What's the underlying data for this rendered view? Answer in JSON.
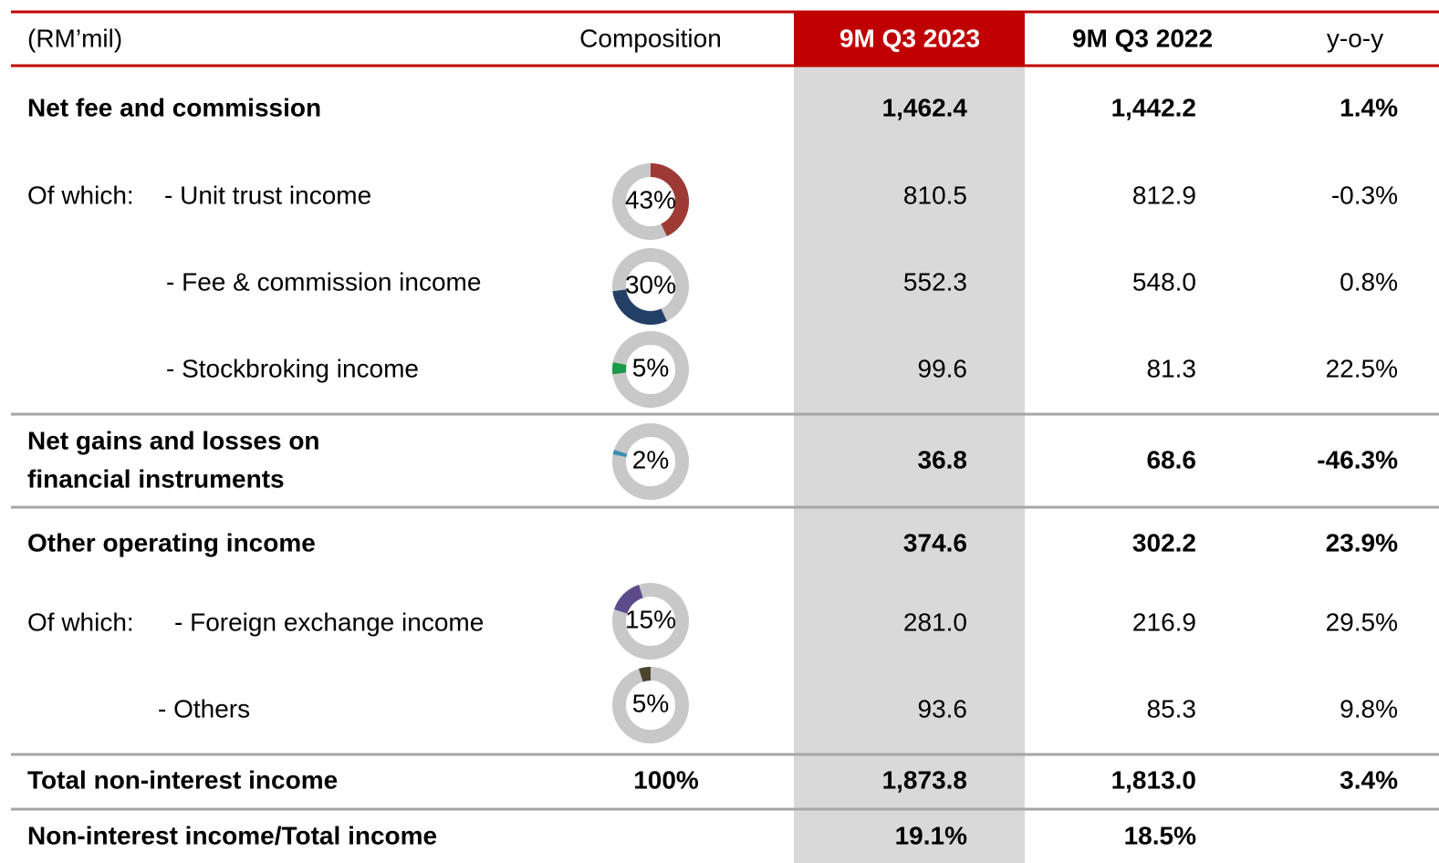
{
  "header": {
    "unit": "(RM’mil)",
    "composition": "Composition",
    "col1": "9M Q3 2023",
    "col2": "9M Q3 2022",
    "col3": "y-o-y"
  },
  "rows": [
    {
      "label": "Net fee and commission",
      "bold": true,
      "v2023": "1,462.4",
      "v2022": "1,442.2",
      "yoy": "1.4%"
    },
    {
      "prefix": "Of which:",
      "label": "- Unit trust income",
      "bold": false,
      "composition": {
        "value": 43,
        "label": "43%",
        "color": "#9e3a35"
      },
      "v2023": "810.5",
      "v2022": "812.9",
      "yoy": "-0.3%"
    },
    {
      "label": "- Fee & commission income",
      "bold": false,
      "composition": {
        "value": 30,
        "label": "30%",
        "color": "#243f66"
      },
      "v2023": "552.3",
      "v2022": "548.0",
      "yoy": "0.8%"
    },
    {
      "label": "- Stockbroking income",
      "bold": false,
      "composition": {
        "value": 5,
        "label": "5%",
        "color": "#1a9a4a"
      },
      "v2023": "99.6",
      "v2022": "81.3",
      "yoy": "22.5%"
    },
    {
      "label_lines": [
        "Net gains and losses on",
        "financial instruments"
      ],
      "bold": true,
      "composition": {
        "value": 2,
        "label": "2%",
        "color": "#3a8fb0"
      },
      "v2023": "36.8",
      "v2022": "68.6",
      "yoy": "-46.3%"
    },
    {
      "label": "Other operating income",
      "bold": true,
      "v2023": "374.6",
      "v2022": "302.2",
      "yoy": "23.9%"
    },
    {
      "prefix": "Of which:",
      "label": "- Foreign exchange income",
      "bold": false,
      "composition": {
        "value": 15,
        "label": "15%",
        "color": "#5c4a8a"
      },
      "v2023": "281.0",
      "v2022": "216.9",
      "yoy": "29.5%"
    },
    {
      "label": "- Others",
      "bold": false,
      "composition": {
        "value": 5,
        "label": "5%",
        "color": "#4a4530"
      },
      "v2023": "93.6",
      "v2022": "85.3",
      "yoy": "9.8%"
    },
    {
      "label": "Total non-interest income",
      "bold": true,
      "composition": "100%",
      "v2023": "1,873.8",
      "v2022": "1,813.0",
      "yoy": "3.4%"
    },
    {
      "label": "Non-interest income/Total income",
      "bold": true,
      "v2023": "19.1%",
      "v2022": "18.5%"
    }
  ]
}
